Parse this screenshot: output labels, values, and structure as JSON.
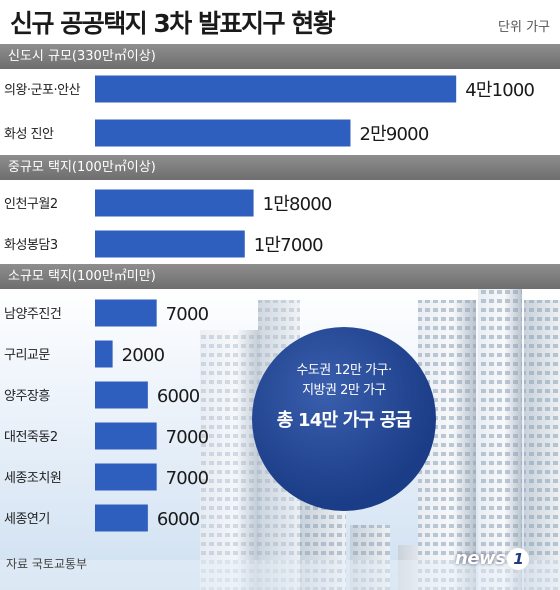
{
  "title": "신규 공공택지 3차 발표지구 현황",
  "unit": "단위 가구",
  "source": "자료 국토교통부",
  "callout": {
    "line1": "수도권 12만 가구·",
    "line2": "지방권 2만 가구",
    "line3": "총 14만 가구 공급"
  },
  "logo": {
    "text": "news",
    "mark": "1"
  },
  "colors": {
    "bar": "#2e5fbf",
    "section": "#7b7b7b",
    "callout": "#1b3c86"
  },
  "sections": [
    {
      "label": "신도시 규모(330만㎡이상)"
    },
    {
      "label": "중규모 택지(100만㎡이상)"
    },
    {
      "label": "소규모 택지(100만㎡미만)"
    }
  ],
  "chart_data": {
    "type": "bar",
    "orientation": "horizontal",
    "xlim": [
      0,
      42000
    ],
    "grid": false,
    "categories": [
      "의왕·군포·안산",
      "화성 진안",
      "인천구월2",
      "화성봉담3",
      "남양주진건",
      "구리교문",
      "양주장흥",
      "대전죽동2",
      "세종조치원",
      "세종연기"
    ],
    "values": [
      41000,
      29000,
      18000,
      17000,
      7000,
      2000,
      6000,
      7000,
      7000,
      6000
    ],
    "value_labels": [
      "4만1000",
      "2만9000",
      "1만8000",
      "1만7000",
      "7000",
      "2000",
      "6000",
      "7000",
      "7000",
      "6000"
    ],
    "groups": [
      {
        "section": 0,
        "indices": [
          0,
          1
        ]
      },
      {
        "section": 1,
        "indices": [
          2,
          3
        ]
      },
      {
        "section": 2,
        "indices": [
          4,
          5,
          6,
          7,
          8,
          9
        ]
      }
    ]
  }
}
